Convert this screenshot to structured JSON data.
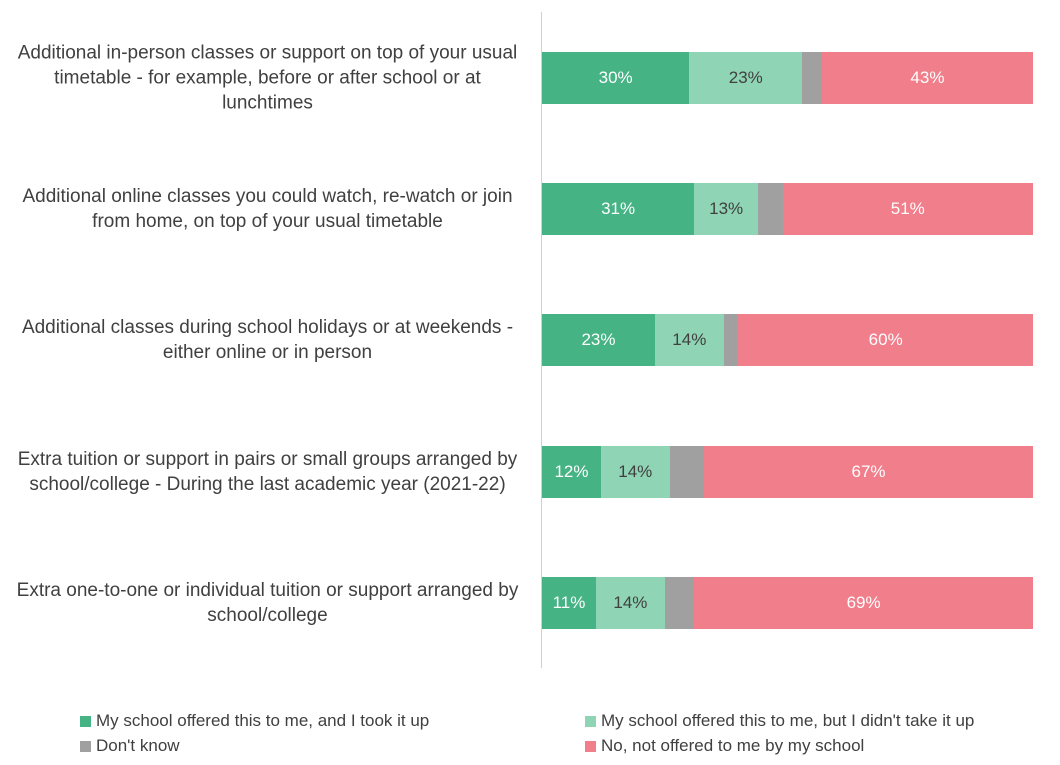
{
  "chart_data": {
    "type": "stacked-bar-horizontal",
    "categories": [
      "Additional in-person classes or support on top of your usual timetable - for example, before or after school or at lunchtimes",
      "Additional online classes you could watch, re-watch or join from home, on top of your usual timetable",
      "Additional classes during school holidays or at weekends - either online or in person",
      "Extra tuition or support in pairs or small groups arranged by school/college - During the last academic year (2021-22)",
      "Extra one-to-one or individual tuition or support arranged by school/college"
    ],
    "series": [
      {
        "name": "My school offered this to me, and I took it up",
        "color": "#45b383",
        "values": [
          30,
          31,
          23,
          12,
          11
        ],
        "value_labels": [
          "30%",
          "31%",
          "23%",
          "12%",
          "11%"
        ]
      },
      {
        "name": "My school offered this to me, but I didn't take it up",
        "color": "#8fd4b4",
        "values": [
          23,
          13,
          14,
          14,
          14
        ],
        "value_labels": [
          "23%",
          "13%",
          "14%",
          "14%",
          "14%"
        ]
      },
      {
        "name": "Don't know",
        "color": "#a0a0a0",
        "values": [
          4,
          5,
          3,
          7,
          6
        ]
      },
      {
        "name": "No, not offered to me by my school",
        "color": "#f07e8b",
        "values": [
          43,
          51,
          60,
          67,
          69
        ],
        "value_labels": [
          "43%",
          "51%",
          "60%",
          "67%",
          "69%"
        ]
      }
    ],
    "xlim": [
      0,
      100
    ]
  }
}
